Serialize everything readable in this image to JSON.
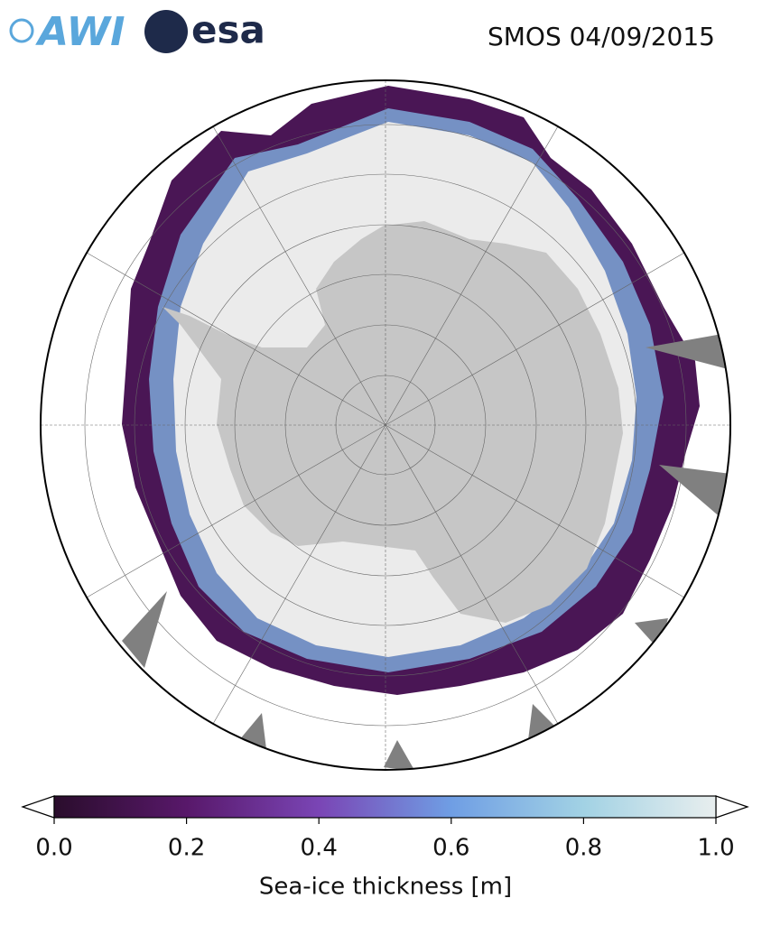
{
  "logos": [
    "AWI",
    "esa"
  ],
  "title": "SMOS 04/09/2015",
  "colorbar": {
    "label": "Sea-ice thickness [m]",
    "lim": [
      0,
      1
    ],
    "ticks": [
      {
        "value": 0,
        "label": "0.0"
      },
      0.2,
      0.4,
      0.6,
      0.8,
      {
        "value": 1,
        "label": "1.0"
      }
    ],
    "colors": [
      "#2a0d2c",
      "#58186a",
      "#7a45b5",
      "#6f9ee4",
      "#a2d2e4",
      "#e8eeee"
    ]
  }
}
